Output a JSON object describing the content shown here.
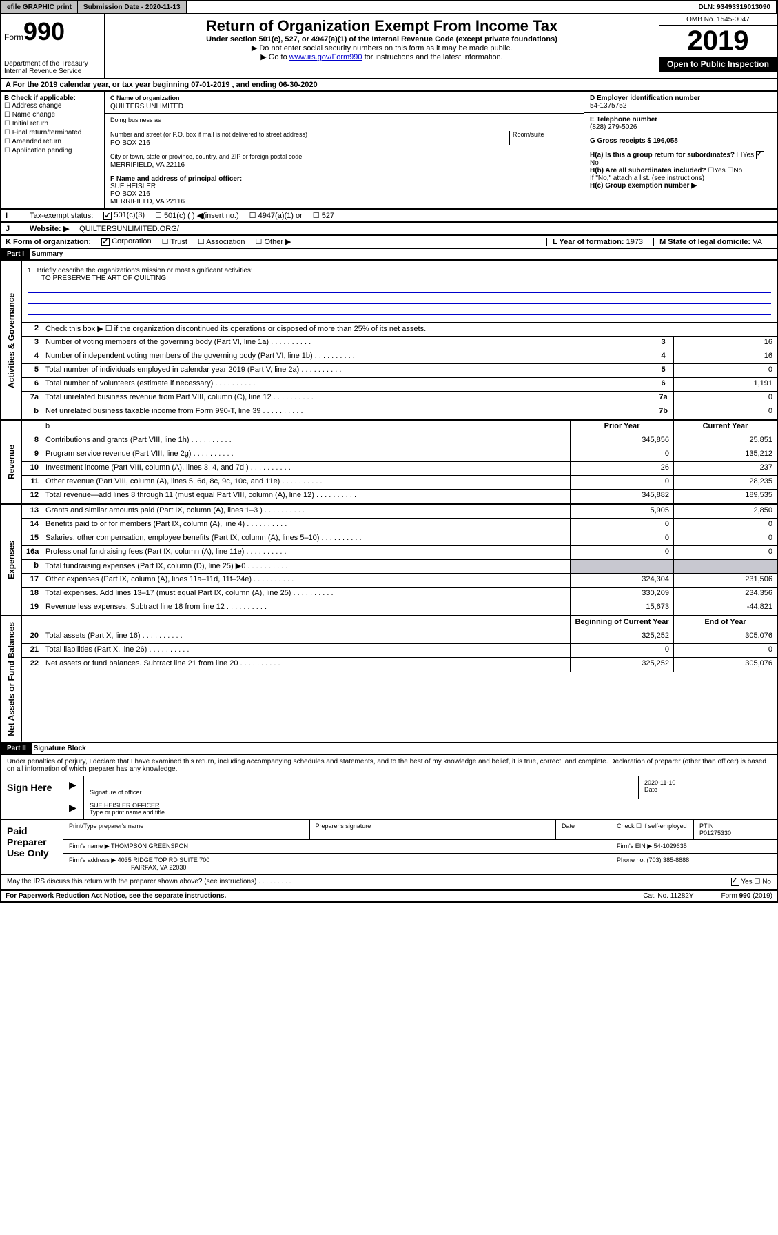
{
  "topbar": {
    "efile": "efile GRAPHIC print",
    "submission_label": "Submission Date - 2020-11-13",
    "dln": "DLN: 93493319013090"
  },
  "header": {
    "form_word": "Form",
    "form_num": "990",
    "dept": "Department of the Treasury\nInternal Revenue Service",
    "title": "Return of Organization Exempt From Income Tax",
    "subtitle": "Under section 501(c), 527, or 4947(a)(1) of the Internal Revenue Code (except private foundations)",
    "instr1": "▶ Do not enter social security numbers on this form as it may be made public.",
    "instr2_pre": "▶ Go to ",
    "instr2_link": "www.irs.gov/Form990",
    "instr2_post": " for instructions and the latest information.",
    "omb": "OMB No. 1545-0047",
    "year": "2019",
    "open_public": "Open to Public Inspection"
  },
  "row_a": "A For the 2019 calendar year, or tax year beginning 07-01-2019   , and ending 06-30-2020",
  "box_b": {
    "label": "B Check if applicable:",
    "items": [
      "Address change",
      "Name change",
      "Initial return",
      "Final return/terminated",
      "Amended return",
      "Application pending"
    ]
  },
  "box_c": {
    "name_label": "C Name of organization",
    "name": "QUILTERS UNLIMITED",
    "dba_label": "Doing business as",
    "addr_label": "Number and street (or P.O. box if mail is not delivered to street address)",
    "room_label": "Room/suite",
    "addr": "PO BOX 216",
    "city_label": "City or town, state or province, country, and ZIP or foreign postal code",
    "city": "MERRIFIELD, VA  22116"
  },
  "box_d": {
    "label": "D Employer identification number",
    "value": "54-1375752"
  },
  "box_e": {
    "label": "E Telephone number",
    "value": "(828) 279-5026"
  },
  "box_g": {
    "label": "G Gross receipts $ ",
    "value": "196,058"
  },
  "box_f": {
    "label": "F  Name and address of principal officer:",
    "name": "SUE HEISLER",
    "addr": "PO BOX 216",
    "city": "MERRIFIELD, VA  22116"
  },
  "box_h": {
    "a_label": "H(a)  Is this a group return for subordinates?",
    "b_label": "H(b)  Are all subordinates included?",
    "b_note": "If \"No,\" attach a list. (see instructions)",
    "c_label": "H(c)  Group exemption number ▶",
    "yes": "Yes",
    "no": "No"
  },
  "box_i": {
    "label": "Tax-exempt status:",
    "opts": [
      "501(c)(3)",
      "501(c) (  ) ◀(insert no.)",
      "4947(a)(1) or",
      "527"
    ]
  },
  "box_j": {
    "label": "Website: ▶",
    "value": "QUILTERSUNLIMITED.ORG/"
  },
  "box_k": {
    "label": "K Form of organization:",
    "opts": [
      "Corporation",
      "Trust",
      "Association",
      "Other ▶"
    ]
  },
  "box_l": {
    "label": "L Year of formation: ",
    "value": "1973"
  },
  "box_m": {
    "label": "M State of legal domicile: ",
    "value": "VA"
  },
  "part1": {
    "hdr": "Part I",
    "title": "Summary",
    "q1_label": "Briefly describe the organization's mission or most significant activities:",
    "q1_value": "TO PRESERVE THE ART OF QUILTING",
    "q2": "Check this box ▶ ☐  if the organization discontinued its operations or disposed of more than 25% of its net assets."
  },
  "gov_rows": [
    {
      "n": "3",
      "label": "Number of voting members of the governing body (Part VI, line 1a)",
      "box": "3",
      "val": "16"
    },
    {
      "n": "4",
      "label": "Number of independent voting members of the governing body (Part VI, line 1b)",
      "box": "4",
      "val": "16"
    },
    {
      "n": "5",
      "label": "Total number of individuals employed in calendar year 2019 (Part V, line 2a)",
      "box": "5",
      "val": "0"
    },
    {
      "n": "6",
      "label": "Total number of volunteers (estimate if necessary)",
      "box": "6",
      "val": "1,191"
    },
    {
      "n": "7a",
      "label": "Total unrelated business revenue from Part VIII, column (C), line 12",
      "box": "7a",
      "val": "0"
    },
    {
      "n": "b",
      "label": "Net unrelated business taxable income from Form 990-T, line 39",
      "box": "7b",
      "val": "0"
    }
  ],
  "rev_hdr": {
    "prior": "Prior Year",
    "current": "Current Year"
  },
  "rev_rows": [
    {
      "n": "8",
      "label": "Contributions and grants (Part VIII, line 1h)",
      "prior": "345,856",
      "cur": "25,851"
    },
    {
      "n": "9",
      "label": "Program service revenue (Part VIII, line 2g)",
      "prior": "0",
      "cur": "135,212"
    },
    {
      "n": "10",
      "label": "Investment income (Part VIII, column (A), lines 3, 4, and 7d )",
      "prior": "26",
      "cur": "237"
    },
    {
      "n": "11",
      "label": "Other revenue (Part VIII, column (A), lines 5, 6d, 8c, 9c, 10c, and 11e)",
      "prior": "0",
      "cur": "28,235"
    },
    {
      "n": "12",
      "label": "Total revenue—add lines 8 through 11 (must equal Part VIII, column (A), line 12)",
      "prior": "345,882",
      "cur": "189,535"
    }
  ],
  "exp_rows": [
    {
      "n": "13",
      "label": "Grants and similar amounts paid (Part IX, column (A), lines 1–3 )",
      "prior": "5,905",
      "cur": "2,850"
    },
    {
      "n": "14",
      "label": "Benefits paid to or for members (Part IX, column (A), line 4)",
      "prior": "0",
      "cur": "0"
    },
    {
      "n": "15",
      "label": "Salaries, other compensation, employee benefits (Part IX, column (A), lines 5–10)",
      "prior": "0",
      "cur": "0"
    },
    {
      "n": "16a",
      "label": "Professional fundraising fees (Part IX, column (A), line 11e)",
      "prior": "0",
      "cur": "0"
    },
    {
      "n": "b",
      "label": "Total fundraising expenses (Part IX, column (D), line 25) ▶0",
      "prior": "",
      "cur": "",
      "shaded": true
    },
    {
      "n": "17",
      "label": "Other expenses (Part IX, column (A), lines 11a–11d, 11f–24e)",
      "prior": "324,304",
      "cur": "231,506"
    },
    {
      "n": "18",
      "label": "Total expenses. Add lines 13–17 (must equal Part IX, column (A), line 25)",
      "prior": "330,209",
      "cur": "234,356"
    },
    {
      "n": "19",
      "label": "Revenue less expenses. Subtract line 18 from line 12",
      "prior": "15,673",
      "cur": "-44,821"
    }
  ],
  "net_hdr": {
    "prior": "Beginning of Current Year",
    "current": "End of Year"
  },
  "net_rows": [
    {
      "n": "20",
      "label": "Total assets (Part X, line 16)",
      "prior": "325,252",
      "cur": "305,076"
    },
    {
      "n": "21",
      "label": "Total liabilities (Part X, line 26)",
      "prior": "0",
      "cur": "0"
    },
    {
      "n": "22",
      "label": "Net assets or fund balances. Subtract line 21 from line 20",
      "prior": "325,252",
      "cur": "305,076"
    }
  ],
  "vtabs": {
    "gov": "Activities & Governance",
    "rev": "Revenue",
    "exp": "Expenses",
    "net": "Net Assets or Fund Balances"
  },
  "part2": {
    "hdr": "Part II",
    "title": "Signature Block",
    "text": "Under penalties of perjury, I declare that I have examined this return, including accompanying schedules and statements, and to the best of my knowledge and belief, it is true, correct, and complete. Declaration of preparer (other than officer) is based on all information of which preparer has any knowledge."
  },
  "sign": {
    "label": "Sign Here",
    "sig_officer": "Signature of officer",
    "date": "2020-11-10",
    "date_label": "Date",
    "name": "SUE HEISLER  OFFICER",
    "name_label": "Type or print name and title"
  },
  "paid": {
    "label": "Paid Preparer Use Only",
    "hdr_name": "Print/Type preparer's name",
    "hdr_sig": "Preparer's signature",
    "hdr_date": "Date",
    "hdr_check": "Check ☐ if self-employed",
    "hdr_ptin": "PTIN",
    "ptin": "P01275330",
    "firm_name_label": "Firm's name     ▶",
    "firm_name": "THOMPSON GREENSPON",
    "firm_ein_label": "Firm's EIN ▶",
    "firm_ein": "54-1029635",
    "firm_addr_label": "Firm's address ▶",
    "firm_addr": "4035 RIDGE TOP RD SUITE 700",
    "firm_city": "FAIRFAX, VA  22030",
    "phone_label": "Phone no. ",
    "phone": "(703) 385-8888"
  },
  "discuss": {
    "label": "May the IRS discuss this return with the preparer shown above? (see instructions)",
    "yes": "Yes",
    "no": "No"
  },
  "footer": {
    "left": "For Paperwork Reduction Act Notice, see the separate instructions.",
    "mid": "Cat. No. 11282Y",
    "right": "Form 990 (2019)"
  }
}
